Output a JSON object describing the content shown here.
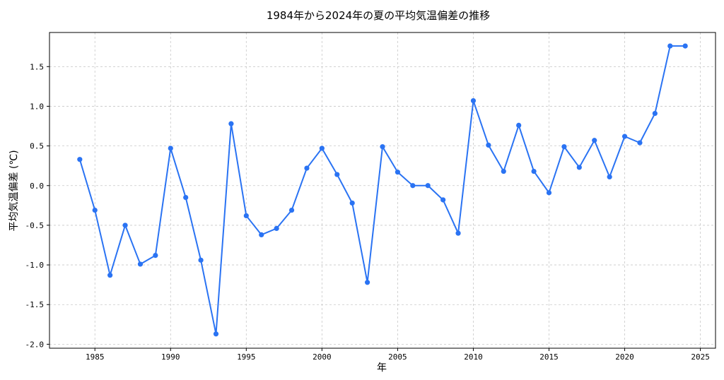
{
  "chart_data": {
    "type": "line",
    "title": "1984年から2024年の夏の平均気温偏差の推移",
    "xlabel": "年",
    "ylabel": "平均気温偏差 (℃)",
    "xlim": [
      1982,
      2026
    ],
    "ylim": [
      -2.05,
      1.93
    ],
    "grid": true,
    "x_ticks": [
      1985,
      1990,
      1995,
      2000,
      2005,
      2010,
      2015,
      2020,
      2025
    ],
    "y_ticks": [
      -2.0,
      -1.5,
      -1.0,
      -0.5,
      0.0,
      0.5,
      1.0,
      1.5
    ],
    "y_tick_labels": [
      "-2.0",
      "-1.5",
      "-1.0",
      "-0.5",
      "0.0",
      "0.5",
      "1.0",
      "1.5"
    ],
    "series": [
      {
        "color": "#2a73f3",
        "x": [
          1984,
          1985,
          1986,
          1987,
          1988,
          1989,
          1990,
          1991,
          1992,
          1993,
          1994,
          1995,
          1996,
          1997,
          1998,
          1999,
          2000,
          2001,
          2002,
          2003,
          2004,
          2005,
          2006,
          2007,
          2008,
          2009,
          2010,
          2011,
          2012,
          2013,
          2014,
          2015,
          2016,
          2017,
          2018,
          2019,
          2020,
          2021,
          2022,
          2023,
          2024
        ],
        "values": [
          0.33,
          -0.31,
          -1.13,
          -0.5,
          -0.99,
          -0.88,
          0.47,
          -0.15,
          -0.94,
          -1.87,
          0.78,
          -0.38,
          -0.62,
          -0.54,
          -0.31,
          0.22,
          0.47,
          0.14,
          -0.22,
          -1.22,
          0.49,
          0.17,
          0.0,
          0.0,
          -0.18,
          -0.6,
          1.07,
          0.51,
          0.18,
          0.76,
          0.18,
          -0.09,
          0.49,
          0.23,
          0.57,
          0.11,
          0.62,
          0.54,
          0.91,
          1.76,
          1.76
        ]
      }
    ]
  }
}
